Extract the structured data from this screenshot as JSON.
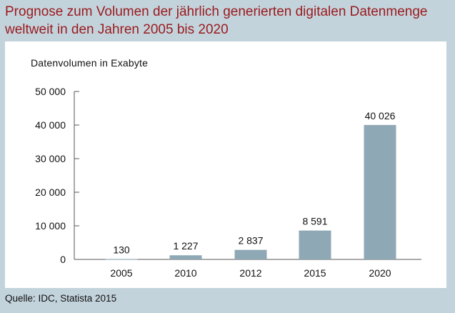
{
  "title_line1": "Prognose zum Volumen der jährlich generierten digitalen Datenmenge",
  "title_line2": "weltweit in den Jahren 2005 bis 2020",
  "source": "Quelle: IDC, Statista 2015",
  "chart_data": {
    "type": "bar",
    "title": "Prognose zum Volumen der jährlich generierten digitalen Datenmenge weltweit in den Jahren 2005 bis 2020",
    "ylabel": "Datenvolumen in Exabyte",
    "xlabel": "",
    "categories": [
      "2005",
      "2010",
      "2012",
      "2015",
      "2020"
    ],
    "values": [
      130,
      1227,
      2837,
      8591,
      40026
    ],
    "value_labels": [
      "130",
      "1 227",
      "2 837",
      "8 591",
      "40 026"
    ],
    "ylim": [
      0,
      50000
    ],
    "yticks": [
      0,
      10000,
      20000,
      30000,
      40000,
      50000
    ],
    "ytick_labels": [
      "0",
      "10 000",
      "20 000",
      "30 000",
      "40 000",
      "50 000"
    ],
    "bar_color": "#8fa8b5",
    "grid": false,
    "legend": "none"
  }
}
